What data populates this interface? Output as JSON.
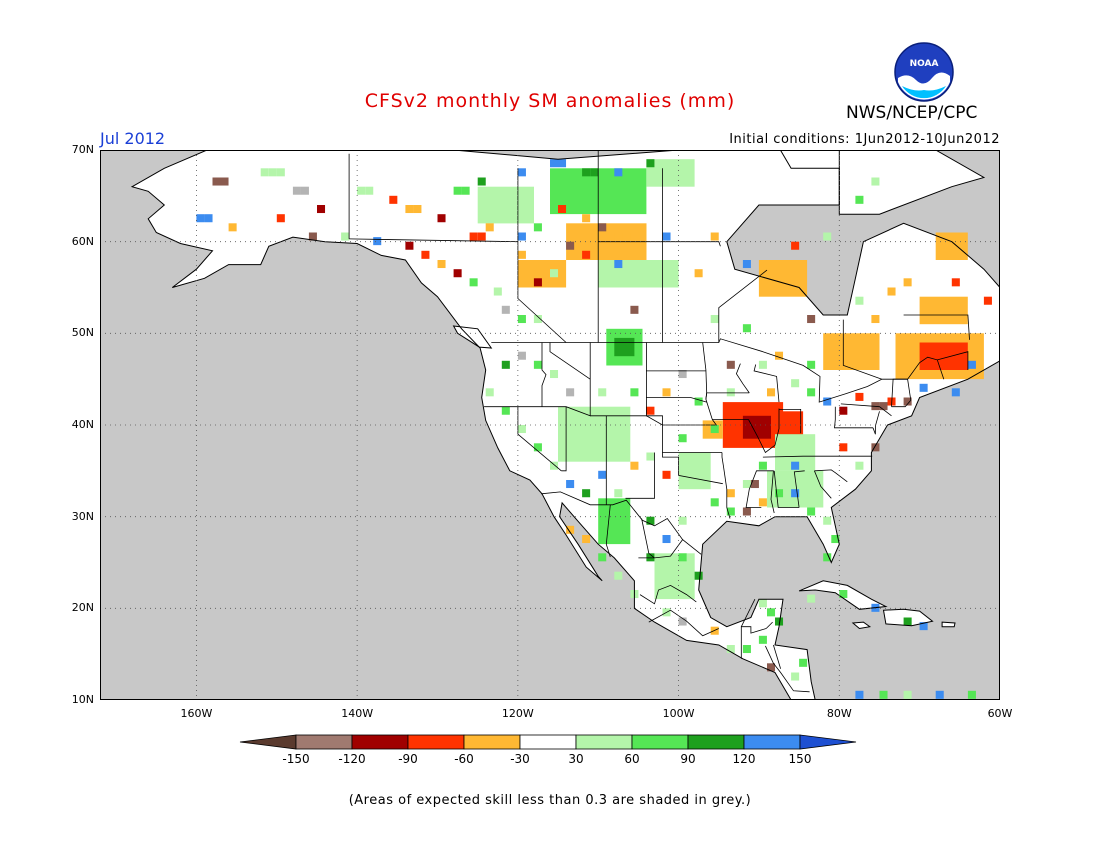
{
  "header": {
    "title": "CFSv2 monthly SM anomalies (mm)",
    "agency": "NWS/NCEP/CPC",
    "logo_text": "NOAA",
    "month": "Jul 2012",
    "initial_conditions": "Initial conditions: 1Jun2012-10Jun2012"
  },
  "map": {
    "lon_range": [
      -172,
      -60
    ],
    "lat_range": [
      10,
      70
    ],
    "lat_labels": [
      "10N",
      "20N",
      "30N",
      "40N",
      "50N",
      "60N",
      "70N"
    ],
    "lon_labels": [
      "160W",
      "140W",
      "120W",
      "100W",
      "80W",
      "60W"
    ],
    "ocean_color": "#c8c8c8",
    "land_color": "#ffffff"
  },
  "colorbar": {
    "labels": [
      "-150",
      "-120",
      "-90",
      "-60",
      "-30",
      "30",
      "60",
      "90",
      "120",
      "150"
    ],
    "colors": [
      "#5a3a2e",
      "#a07a70",
      "#a00000",
      "#ff3300",
      "#ffb833",
      "#ffffff",
      "#b4f5aa",
      "#55e655",
      "#1ea01e",
      "#3c8cf0",
      "#1e50d2"
    ]
  },
  "footer": {
    "note": "(Areas of expected skill less than 0.3 are shaded in grey.)"
  }
}
